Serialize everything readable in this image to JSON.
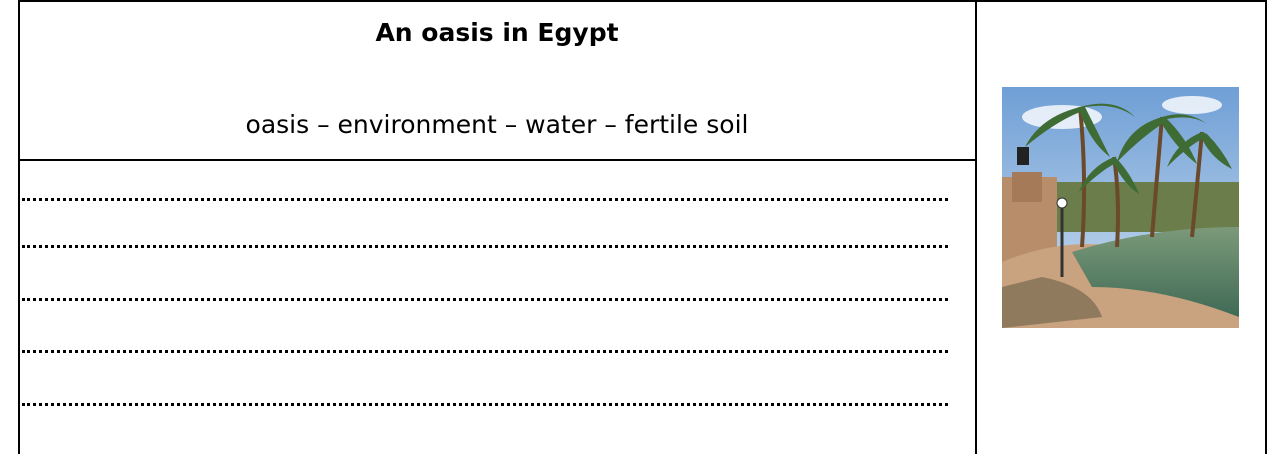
{
  "header": {
    "title": "An oasis in Egypt",
    "keywords": "oasis – environment – water – fertile soil"
  }
}
